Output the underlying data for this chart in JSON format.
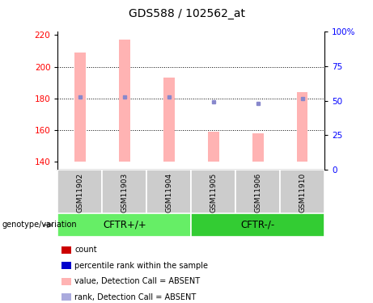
{
  "title": "GDS588 / 102562_at",
  "samples": [
    "GSM11902",
    "GSM11903",
    "GSM11904",
    "GSM11905",
    "GSM11906",
    "GSM11910"
  ],
  "bar_tops": [
    209,
    217,
    193,
    159,
    158,
    184
  ],
  "bar_bottom": 140,
  "bar_color": "#ffb3b3",
  "dot_values": [
    181,
    181,
    181,
    178,
    177,
    180
  ],
  "dot_color": "#8888cc",
  "ylim_left": [
    135,
    222
  ],
  "ylim_right": [
    0,
    100
  ],
  "yticks_left": [
    140,
    160,
    180,
    200,
    220
  ],
  "yticks_right": [
    0,
    25,
    50,
    75,
    100
  ],
  "yticklabels_right": [
    "0",
    "25",
    "50",
    "75",
    "100%"
  ],
  "grid_values": [
    160,
    180,
    200
  ],
  "groups": [
    {
      "label": "CFTR+/+",
      "samples": [
        0,
        1,
        2
      ],
      "color": "#66ee66"
    },
    {
      "label": "CFTR-/-",
      "samples": [
        3,
        4,
        5
      ],
      "color": "#33cc33"
    }
  ],
  "group_label": "genotype/variation",
  "legend_items": [
    {
      "color": "#cc0000",
      "text": "count"
    },
    {
      "color": "#0000cc",
      "text": "percentile rank within the sample"
    },
    {
      "color": "#ffb3b3",
      "text": "value, Detection Call = ABSENT"
    },
    {
      "color": "#aaaadd",
      "text": "rank, Detection Call = ABSENT"
    }
  ],
  "bar_width": 0.25,
  "sample_panel_color": "#cccccc",
  "title_fontsize": 10
}
